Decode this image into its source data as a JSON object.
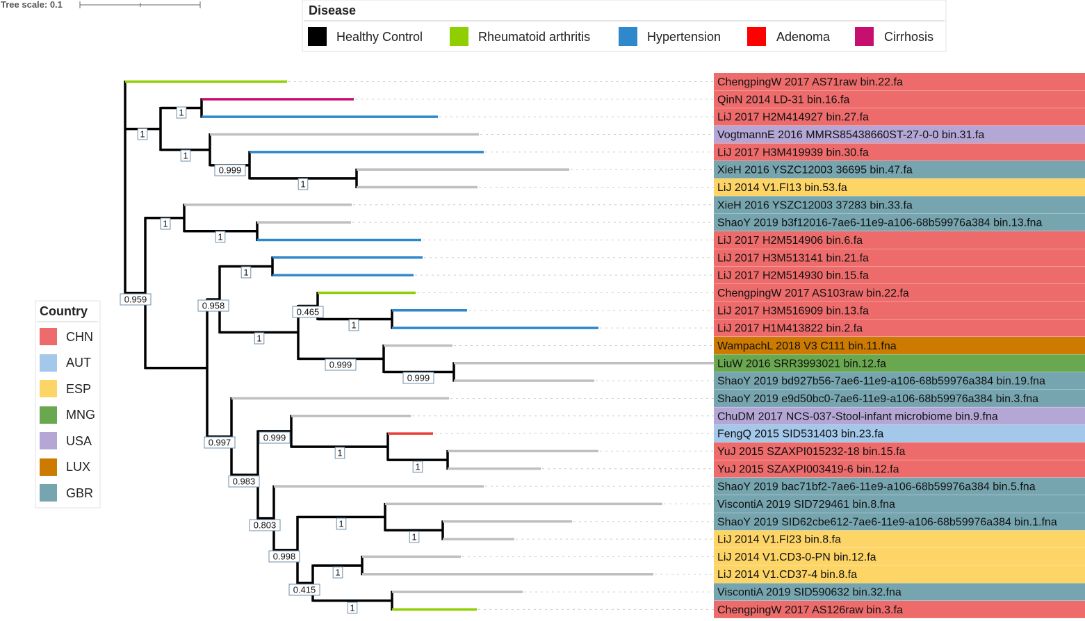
{
  "tree_scale": {
    "label": "Tree scale: 0.1"
  },
  "disease_legend": {
    "title": "Disease",
    "items": [
      {
        "label": "Healthy Control",
        "color": "#000000"
      },
      {
        "label": "Rheumatoid arthritis",
        "color": "#8fce00"
      },
      {
        "label": "Hypertension",
        "color": "#2f87cc"
      },
      {
        "label": "Adenoma",
        "color": "#ff0000"
      },
      {
        "label": "Cirrhosis",
        "color": "#c70f6f"
      }
    ]
  },
  "country_legend": {
    "title": "Country",
    "items": [
      {
        "label": "CHN",
        "color": "#ee6b6b"
      },
      {
        "label": "AUT",
        "color": "#a3c8ea"
      },
      {
        "label": "ESP",
        "color": "#fdd466"
      },
      {
        "label": "MNG",
        "color": "#6aa84f"
      },
      {
        "label": "USA",
        "color": "#b4a7d6"
      },
      {
        "label": "LUX",
        "color": "#cc7a00"
      },
      {
        "label": "GBR",
        "color": "#76a5af"
      }
    ]
  },
  "disease_colors": {
    "control": "#bfbfbf",
    "ra": "#8fce00",
    "hyp": "#2f87cc",
    "aden": "#e8433a",
    "cirr": "#c70f6f"
  },
  "leaves": [
    {
      "id": "L1",
      "label": "ChengpingW 2017 AS71raw bin.22.fa",
      "country": "CHN",
      "disease": "ra"
    },
    {
      "id": "L2",
      "label": "QinN 2014 LD-31 bin.16.fa",
      "country": "CHN",
      "disease": "cirr"
    },
    {
      "id": "L3",
      "label": "LiJ 2017 H2M414927 bin.27.fa",
      "country": "CHN",
      "disease": "hyp"
    },
    {
      "id": "L4",
      "label": "VogtmannE 2016 MMRS85438660ST-27-0-0 bin.31.fa",
      "country": "USA",
      "disease": "control"
    },
    {
      "id": "L5",
      "label": "LiJ 2017 H3M419939 bin.30.fa",
      "country": "CHN",
      "disease": "hyp"
    },
    {
      "id": "L6",
      "label": "XieH 2016 YSZC12003 36695 bin.47.fa",
      "country": "GBR",
      "disease": "control"
    },
    {
      "id": "L7",
      "label": "LiJ 2014 V1.FI13 bin.53.fa",
      "country": "ESP",
      "disease": "control"
    },
    {
      "id": "L8",
      "label": "XieH 2016 YSZC12003 37283 bin.33.fa",
      "country": "GBR",
      "disease": "control"
    },
    {
      "id": "L9",
      "label": "ShaoY 2019 b3f12016-7ae6-11e9-a106-68b59976a384 bin.13.fna",
      "country": "GBR",
      "disease": "control"
    },
    {
      "id": "L10",
      "label": "LiJ 2017 H2M514906 bin.6.fa",
      "country": "CHN",
      "disease": "hyp"
    },
    {
      "id": "L11",
      "label": "LiJ 2017 H3M513141 bin.21.fa",
      "country": "CHN",
      "disease": "hyp"
    },
    {
      "id": "L12",
      "label": "LiJ 2017 H2M514930 bin.15.fa",
      "country": "CHN",
      "disease": "hyp"
    },
    {
      "id": "L13",
      "label": "ChengpingW 2017 AS103raw bin.22.fa",
      "country": "CHN",
      "disease": "ra"
    },
    {
      "id": "L14",
      "label": "LiJ 2017 H3M516909 bin.13.fa",
      "country": "CHN",
      "disease": "hyp"
    },
    {
      "id": "L15",
      "label": "LiJ 2017 H1M413822 bin.2.fa",
      "country": "CHN",
      "disease": "hyp"
    },
    {
      "id": "L16",
      "label": "WampachL 2018 V3 C111 bin.11.fna",
      "country": "LUX",
      "disease": "control"
    },
    {
      "id": "L17",
      "label": "LiuW 2016 SRR3993021 bin.12.fa",
      "country": "MNG",
      "disease": "control"
    },
    {
      "id": "L18",
      "label": "ShaoY 2019 bd927b56-7ae6-11e9-a106-68b59976a384 bin.19.fna",
      "country": "GBR",
      "disease": "control"
    },
    {
      "id": "L19",
      "label": "ShaoY 2019 e9d50bc0-7ae6-11e9-a106-68b59976a384 bin.3.fna",
      "country": "GBR",
      "disease": "control"
    },
    {
      "id": "L20",
      "label": "ChuDM 2017 NCS-037-Stool-infant microbiome bin.9.fna",
      "country": "USA",
      "disease": "control"
    },
    {
      "id": "L21",
      "label": "FengQ 2015 SID531403 bin.23.fa",
      "country": "AUT",
      "disease": "aden"
    },
    {
      "id": "L22",
      "label": "YuJ 2015 SZAXPI015232-18 bin.15.fa",
      "country": "CHN",
      "disease": "control"
    },
    {
      "id": "L23",
      "label": "YuJ 2015 SZAXPI003419-6 bin.12.fa",
      "country": "CHN",
      "disease": "control"
    },
    {
      "id": "L24",
      "label": "ShaoY 2019 bac71bf2-7ae6-11e9-a106-68b59976a384 bin.5.fna",
      "country": "GBR",
      "disease": "control"
    },
    {
      "id": "L25",
      "label": "ViscontiA 2019 SID729461 bin.8.fna",
      "country": "GBR",
      "disease": "control"
    },
    {
      "id": "L26",
      "label": "ShaoY 2019 SID62cbe612-7ae6-11e9-a106-68b59976a384 bin.1.fna",
      "country": "GBR",
      "disease": "control"
    },
    {
      "id": "L27",
      "label": "LiJ 2014 V1.FI23 bin.8.fa",
      "country": "ESP",
      "disease": "control"
    },
    {
      "id": "L28",
      "label": "LiJ 2014 V1.CD3-0-PN bin.12.fa",
      "country": "ESP",
      "disease": "control"
    },
    {
      "id": "L29",
      "label": "LiJ 2014 V1.CD37-4 bin.8.fa",
      "country": "ESP",
      "disease": "control"
    },
    {
      "id": "L30",
      "label": "ViscontiA 2019 SID590632 bin.32.fna",
      "country": "GBR",
      "disease": "control"
    },
    {
      "id": "L31",
      "label": "ChengpingW 2017 AS126raw bin.3.fa",
      "country": "CHN",
      "disease": "ra"
    }
  ],
  "supports": {
    "n_root": "0.959",
    "nA": "1",
    "nB": "1",
    "nC": "1",
    "nD": "0.999",
    "nE": "1",
    "nF": "1",
    "nG": "1",
    "nH": "1",
    "nI": "0.958",
    "nJ": "1",
    "nK": "1",
    "nL": "0.465",
    "nM": "1",
    "nN": "1",
    "nO": "0.999",
    "nP": "0.997",
    "nQ": "0.983",
    "nR": "0.999",
    "nS": "1",
    "nT": "1",
    "nU": "0.803",
    "nV": "0.998",
    "nW": "1",
    "nX": "1",
    "nY": "0.415",
    "nZ": "1",
    "nZa": "1"
  }
}
